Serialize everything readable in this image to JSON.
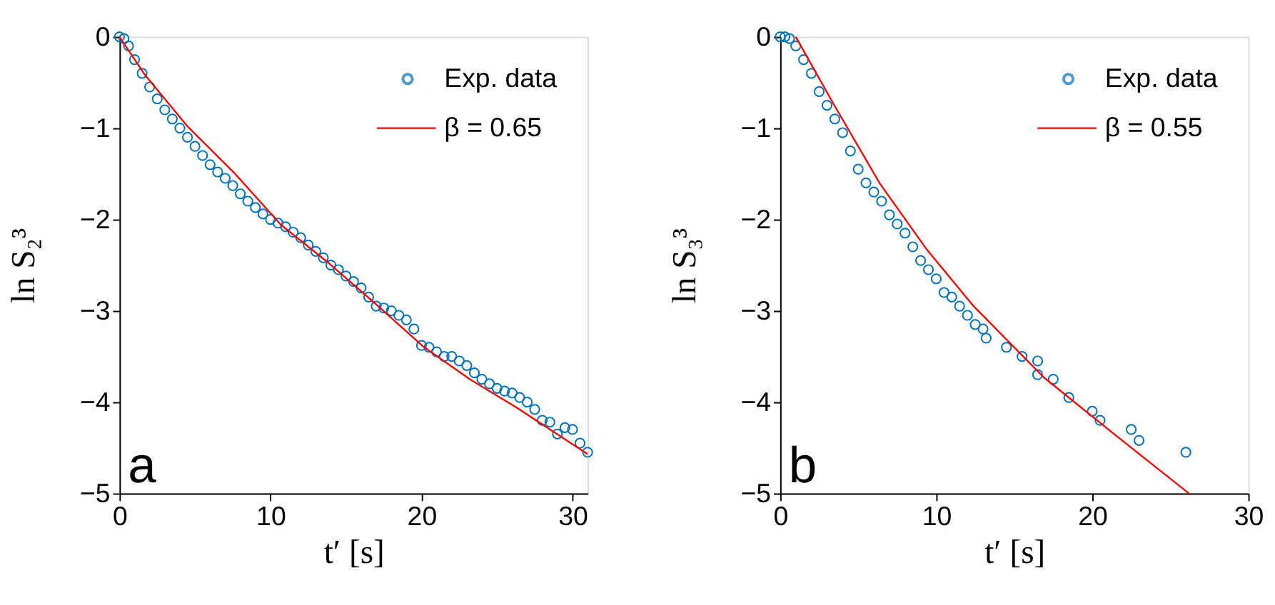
{
  "chart_data": [
    {
      "type": "scatter",
      "xlabel": "t′ [s]",
      "ylabel": "ln S₂³",
      "xlim": [
        0,
        31
      ],
      "ylim": [
        -5,
        0
      ],
      "xticks": [
        0,
        10,
        20,
        30
      ],
      "yticks": [
        -5,
        -4,
        -3,
        -2,
        -1,
        0
      ],
      "grid": false,
      "legend": "top right",
      "marker": "circle",
      "annotations": [
        "a"
      ],
      "series": [
        {
          "name": "Exp. data",
          "color": "#0072bd",
          "x": [
            0,
            0.3,
            0.6,
            1,
            1.5,
            2,
            2.5,
            3,
            3.5,
            4,
            4.5,
            5,
            5.5,
            6,
            6.5,
            7,
            7.5,
            8,
            8.5,
            9,
            9.5,
            10,
            10.5,
            11,
            11.5,
            12,
            12.5,
            13,
            13.5,
            14,
            14.5,
            15,
            15.5,
            16,
            16.5,
            17,
            17.5,
            18,
            18.5,
            19,
            19.5,
            20,
            20.5,
            21,
            21.5,
            22,
            22.5,
            23,
            23.5,
            24,
            24.5,
            25,
            25.5,
            26,
            26.5,
            27,
            27.5,
            28,
            28.5,
            29,
            29.5,
            30,
            30.5,
            31
          ],
          "values": [
            0,
            -0.02,
            -0.1,
            -0.25,
            -0.4,
            -0.55,
            -0.68,
            -0.8,
            -0.9,
            -1.0,
            -1.1,
            -1.2,
            -1.3,
            -1.4,
            -1.48,
            -1.55,
            -1.63,
            -1.72,
            -1.8,
            -1.87,
            -1.94,
            -2.0,
            -2.04,
            -2.08,
            -2.14,
            -2.2,
            -2.28,
            -2.35,
            -2.42,
            -2.5,
            -2.55,
            -2.62,
            -2.68,
            -2.75,
            -2.85,
            -2.95,
            -2.97,
            -3.0,
            -3.05,
            -3.1,
            -3.2,
            -3.38,
            -3.4,
            -3.45,
            -3.5,
            -3.5,
            -3.55,
            -3.6,
            -3.68,
            -3.75,
            -3.8,
            -3.85,
            -3.88,
            -3.9,
            -3.95,
            -4.0,
            -4.08,
            -4.2,
            -4.22,
            -4.35,
            -4.28,
            -4.3,
            -4.45,
            -4.55
          ]
        },
        {
          "name": "β = 0.65",
          "type": "line",
          "marker": "none",
          "color": "#ff0000",
          "x": [
            0,
            1.7,
            4.5,
            7.6,
            10.7,
            13.8,
            17.0,
            20.1,
            23.2,
            26.3,
            31.0
          ],
          "values": [
            0,
            -0.42,
            -0.98,
            -1.49,
            -2.06,
            -2.47,
            -2.93,
            -3.39,
            -3.75,
            -4.06,
            -4.57
          ]
        }
      ]
    },
    {
      "type": "scatter",
      "xlabel": "t′ [s]",
      "ylabel": "ln S₃³",
      "xlim": [
        0,
        30
      ],
      "ylim": [
        -5,
        0
      ],
      "xticks": [
        0,
        10,
        20,
        30
      ],
      "yticks": [
        -5,
        -4,
        -3,
        -2,
        -1,
        0
      ],
      "grid": false,
      "legend": "top right",
      "marker": "circle",
      "annotations": [
        "b"
      ],
      "series": [
        {
          "name": "Exp. data",
          "color": "#0072bd",
          "x": [
            0,
            0.3,
            0.6,
            1,
            1.5,
            2,
            2.5,
            3,
            3.5,
            4,
            4.5,
            5,
            5.5,
            6,
            6.5,
            7,
            7.5,
            8,
            8.5,
            9,
            9.5,
            10,
            10.5,
            11,
            11.5,
            12,
            12.5,
            13,
            13.2,
            14.5,
            15.5,
            16.5,
            16.5,
            17.5,
            18.5,
            20,
            20.5,
            22.5,
            23,
            26
          ],
          "values": [
            0,
            0,
            -0.02,
            -0.1,
            -0.25,
            -0.4,
            -0.6,
            -0.75,
            -0.9,
            -1.05,
            -1.25,
            -1.45,
            -1.6,
            -1.7,
            -1.8,
            -1.95,
            -2.05,
            -2.15,
            -2.3,
            -2.45,
            -2.55,
            -2.65,
            -2.8,
            -2.85,
            -2.95,
            -3.05,
            -3.15,
            -3.2,
            -3.3,
            -3.4,
            -3.5,
            -3.55,
            -3.7,
            -3.75,
            -3.95,
            -4.1,
            -4.2,
            -4.3,
            -4.42,
            -4.55
          ]
        },
        {
          "name": "β = 0.55",
          "type": "line",
          "marker": "none",
          "color": "#ff0000",
          "x": [
            1.0,
            3.4,
            6.4,
            9.4,
            12.4,
            16.9,
            21.4,
            26.2
          ],
          "values": [
            0,
            -0.73,
            -1.61,
            -2.33,
            -2.95,
            -3.73,
            -4.35,
            -5.0
          ]
        }
      ]
    }
  ]
}
